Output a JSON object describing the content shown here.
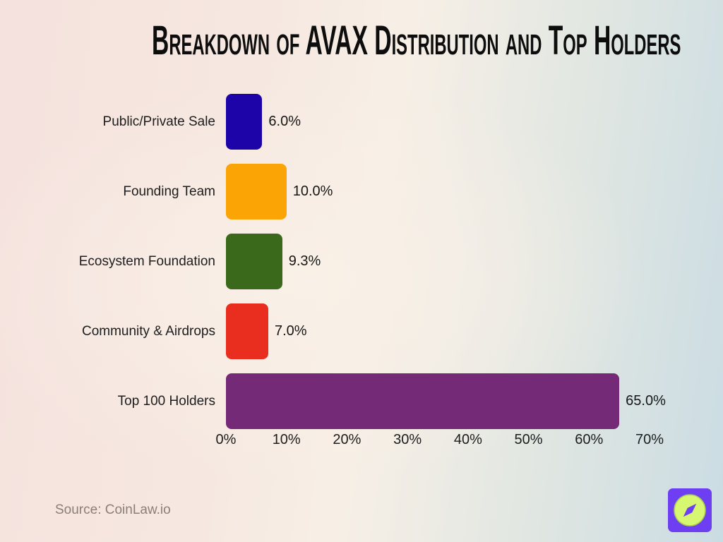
{
  "title": "Breakdown of AVAX Distribution and Top Holders",
  "chart_data": {
    "type": "bar",
    "orientation": "horizontal",
    "title": "Breakdown of AVAX Distribution and Top Holders",
    "categories": [
      "Public/Private Sale",
      "Founding Team",
      "Ecosystem Foundation",
      "Community & Airdrops",
      "Top 100 Holders"
    ],
    "values": [
      6.0,
      10.0,
      9.3,
      7.0,
      65.0
    ],
    "value_labels": [
      "6.0%",
      "10.0%",
      "9.3%",
      "7.0%",
      "65.0%"
    ],
    "bar_colors": [
      "#1c04a8",
      "#fba405",
      "#3a691b",
      "#e92d1e",
      "#752a78"
    ],
    "xlim": [
      0,
      70
    ],
    "x_ticks": [
      "0%",
      "10%",
      "20%",
      "30%",
      "40%",
      "50%",
      "60%",
      "70%"
    ],
    "xlabel": "",
    "ylabel": "",
    "grid": false,
    "legend": false
  },
  "source": {
    "label": "Source: CoinLaw.io"
  },
  "logo": {
    "name": "coinlaw-compass-logo",
    "square_color": "#6e3ef3",
    "circle_color": "#d6f76f",
    "needle_color": "#6e3ef3"
  },
  "colors": {
    "title": "#0d0d0d",
    "label": "#1d1d1d",
    "source": "#8b7f78"
  }
}
